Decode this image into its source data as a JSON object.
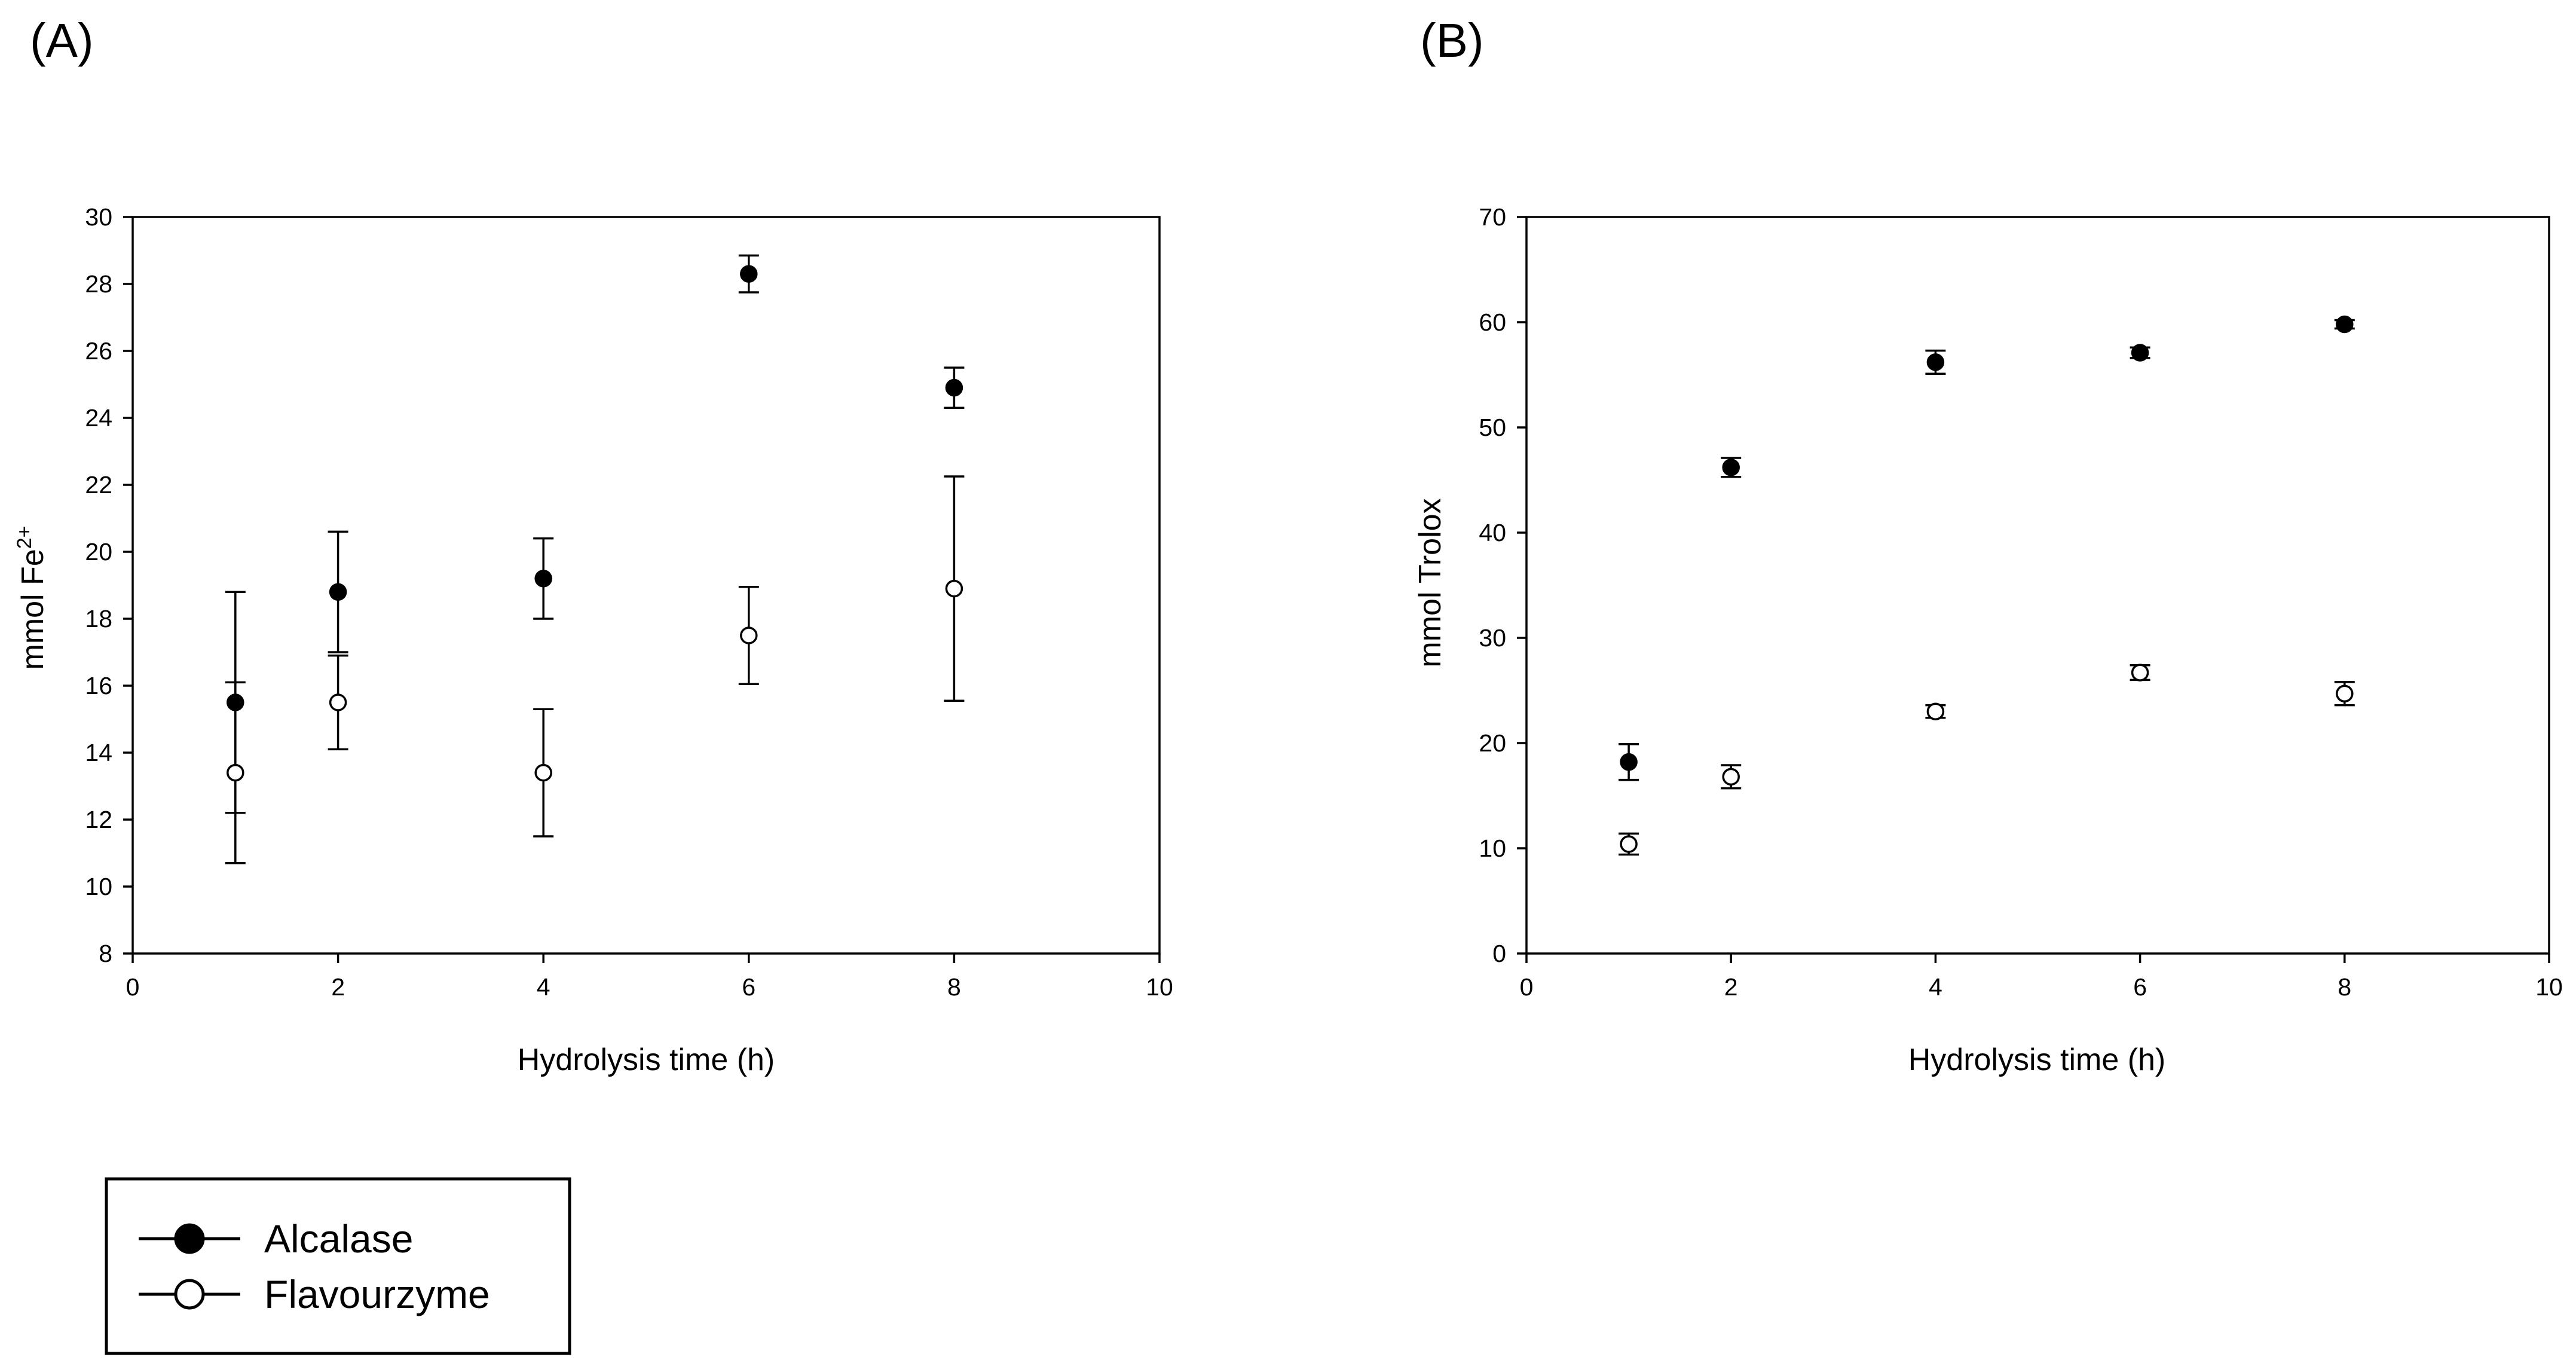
{
  "chart_data": [
    {
      "type": "scatter",
      "panel_label": "(A)",
      "xlabel": "Hydrolysis time (h)",
      "ylabel": "mmol Fe",
      "ylabel_superscript": "2+",
      "xlim": [
        0,
        10
      ],
      "ylim": [
        8,
        30
      ],
      "xticks": [
        0,
        2,
        4,
        6,
        8,
        10
      ],
      "yticks": [
        8,
        10,
        12,
        14,
        16,
        18,
        20,
        22,
        24,
        26,
        28,
        30
      ],
      "grid": false,
      "x": [
        1,
        2,
        4,
        6,
        8
      ],
      "series": [
        {
          "name": "Alcalase",
          "marker": "filled-circle",
          "values": [
            15.5,
            18.8,
            19.2,
            28.3,
            24.9
          ],
          "errors": [
            3.3,
            1.8,
            1.2,
            0.55,
            0.6
          ]
        },
        {
          "name": "Flavourzyme",
          "marker": "open-circle",
          "values": [
            13.4,
            15.5,
            13.4,
            17.5,
            18.9
          ],
          "errors": [
            2.7,
            1.4,
            1.9,
            1.45,
            3.35
          ]
        }
      ]
    },
    {
      "type": "scatter",
      "panel_label": "(B)",
      "xlabel": "Hydrolysis time (h)",
      "ylabel": "mmol Trolox",
      "xlim": [
        0,
        10
      ],
      "ylim": [
        0,
        70
      ],
      "xticks": [
        0,
        2,
        4,
        6,
        8,
        10
      ],
      "yticks": [
        0,
        10,
        20,
        30,
        40,
        50,
        60,
        70
      ],
      "grid": false,
      "x": [
        1,
        2,
        4,
        6,
        8
      ],
      "series": [
        {
          "name": "Alcalase",
          "marker": "filled-circle",
          "values": [
            18.2,
            46.2,
            56.2,
            57.1,
            59.8
          ],
          "errors": [
            1.7,
            0.9,
            1.1,
            0.5,
            0.4
          ]
        },
        {
          "name": "Flavourzyme",
          "marker": "open-circle",
          "values": [
            10.4,
            16.8,
            23.0,
            26.7,
            24.7
          ],
          "errors": [
            1.0,
            1.1,
            0.6,
            0.7,
            1.1
          ]
        }
      ]
    }
  ],
  "legend": {
    "position": "bottom-left",
    "items": [
      {
        "label": "Alcalase",
        "marker": "filled-circle"
      },
      {
        "label": "Flavourzyme",
        "marker": "open-circle"
      }
    ]
  },
  "colors": {
    "marker_stroke": "#000000",
    "filled_marker": "#000000",
    "open_marker": "#ffffff"
  }
}
